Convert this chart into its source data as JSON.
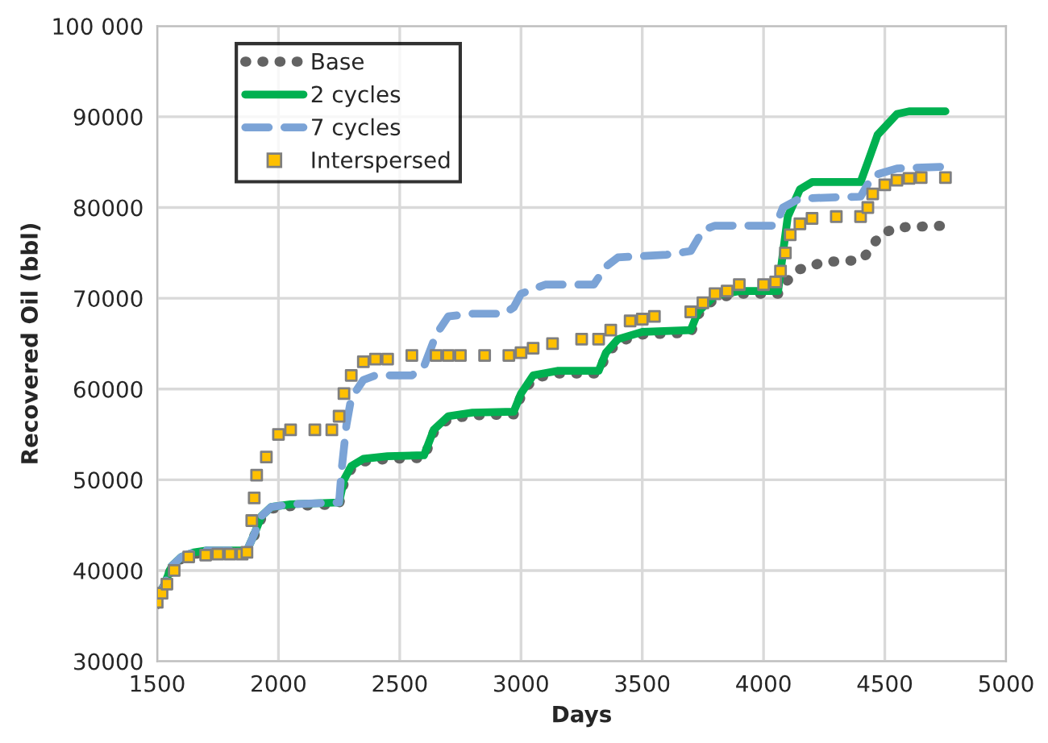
{
  "chart_data": {
    "type": "line",
    "xlabel": "Days",
    "ylabel": "Recovered Oil (bbl)",
    "xlim": [
      1500,
      5000
    ],
    "xticks": [
      1500,
      2000,
      2500,
      3000,
      3500,
      4000,
      4500,
      5000
    ],
    "ylim": [
      30000,
      100000
    ],
    "yticks": [
      30000,
      40000,
      50000,
      60000,
      70000,
      80000,
      90000,
      {
        "value": 100000,
        "label": "100 000"
      }
    ],
    "grid": true,
    "legend": "top left",
    "series": [
      {
        "name": "Base",
        "color": "#636363",
        "line_style": "dotted",
        "x": [
          1500,
          1530,
          1560,
          1600,
          1650,
          1700,
          1870,
          1900,
          1930,
          1970,
          2050,
          2250,
          2270,
          2300,
          2350,
          2450,
          2600,
          2640,
          2700,
          2800,
          2970,
          3000,
          3050,
          3150,
          3320,
          3350,
          3400,
          3500,
          3700,
          3730,
          3800,
          3900,
          4060,
          4080,
          4150,
          4250,
          4400,
          4430,
          4480,
          4550,
          4750
        ],
        "values": [
          36300,
          38300,
          40300,
          41300,
          41800,
          42000,
          42000,
          43800,
          45800,
          46800,
          47100,
          47300,
          49700,
          51200,
          52000,
          52300,
          52400,
          55200,
          56700,
          57100,
          57200,
          59200,
          61200,
          61700,
          61700,
          63700,
          65200,
          66000,
          66200,
          68200,
          70000,
          70500,
          70500,
          71500,
          73200,
          74000,
          74200,
          75000,
          77000,
          77800,
          78000
        ]
      },
      {
        "name": "2 cycles",
        "color": "#00b050",
        "line_style": "solid",
        "x": [
          1500,
          1530,
          1560,
          1600,
          1650,
          1700,
          1870,
          1900,
          1930,
          1970,
          2050,
          2250,
          2270,
          2300,
          2350,
          2450,
          2600,
          2640,
          2700,
          2800,
          2970,
          3000,
          3050,
          3150,
          3320,
          3350,
          3400,
          3500,
          3700,
          3730,
          3800,
          3900,
          4060,
          4080,
          4100,
          4150,
          4200,
          4400,
          4430,
          4470,
          4550,
          4600,
          4750
        ],
        "values": [
          36500,
          38500,
          40500,
          41500,
          42000,
          42200,
          42200,
          44000,
          46000,
          47000,
          47300,
          47500,
          50000,
          51500,
          52300,
          52600,
          52700,
          55500,
          57000,
          57400,
          57500,
          59500,
          61500,
          62000,
          62000,
          64000,
          65500,
          66300,
          66500,
          68500,
          70300,
          70800,
          70800,
          75000,
          79000,
          82000,
          82800,
          82800,
          85000,
          88000,
          90300,
          90600,
          90600
        ]
      },
      {
        "name": "7 cycles",
        "color": "#7ba3d6",
        "line_style": "dashed",
        "x": [
          1500,
          1530,
          1560,
          1600,
          1650,
          1700,
          1870,
          1900,
          1930,
          1970,
          2050,
          2250,
          2260,
          2280,
          2300,
          2350,
          2400,
          2550,
          2600,
          2650,
          2700,
          2800,
          2930,
          2970,
          3000,
          3100,
          3300,
          3350,
          3400,
          3600,
          3700,
          3750,
          3800,
          4050,
          4080,
          4150,
          4400,
          4450,
          4550,
          4750
        ],
        "values": [
          36500,
          38500,
          40500,
          41500,
          42000,
          42200,
          42200,
          44000,
          46000,
          47000,
          47300,
          47500,
          51000,
          56000,
          59000,
          61000,
          61500,
          61500,
          62500,
          66000,
          68000,
          68300,
          68300,
          69000,
          70500,
          71500,
          71500,
          73500,
          74500,
          74800,
          75200,
          77500,
          78000,
          78000,
          80000,
          81000,
          81200,
          83500,
          84300,
          84500
        ]
      },
      {
        "name": "Interspersed",
        "type": "scatter",
        "color": "#ffc000",
        "marker": "square",
        "x": [
          1500,
          1520,
          1540,
          1570,
          1630,
          1700,
          1750,
          1800,
          1850,
          1870,
          1890,
          1900,
          1910,
          1950,
          2000,
          2050,
          2150,
          2220,
          2250,
          2270,
          2300,
          2350,
          2400,
          2450,
          2550,
          2650,
          2700,
          2750,
          2850,
          2950,
          3000,
          3050,
          3130,
          3250,
          3320,
          3370,
          3450,
          3500,
          3550,
          3700,
          3750,
          3800,
          3850,
          3900,
          4000,
          4050,
          4070,
          4090,
          4110,
          4150,
          4200,
          4300,
          4400,
          4430,
          4450,
          4500,
          4550,
          4600,
          4650,
          4750
        ],
        "values": [
          36500,
          37500,
          38500,
          40000,
          41500,
          41700,
          41800,
          41800,
          41800,
          42000,
          45500,
          48000,
          50500,
          52500,
          55000,
          55500,
          55500,
          55500,
          57000,
          59500,
          61500,
          63000,
          63300,
          63300,
          63700,
          63700,
          63700,
          63700,
          63700,
          63700,
          64000,
          64500,
          65000,
          65500,
          65500,
          66500,
          67500,
          67700,
          68000,
          68500,
          69500,
          70500,
          70800,
          71500,
          71500,
          71800,
          73000,
          75000,
          77000,
          78200,
          78800,
          79000,
          79000,
          80000,
          81500,
          82500,
          83000,
          83200,
          83300,
          83300
        ]
      }
    ]
  }
}
